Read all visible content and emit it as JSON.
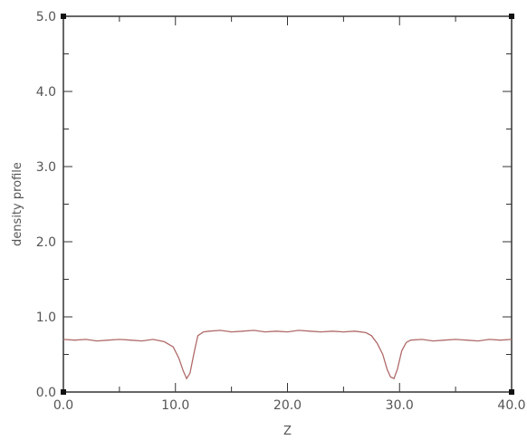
{
  "chart_data": {
    "type": "line",
    "title": "",
    "xlabel": "Z",
    "ylabel": "density profile",
    "xlim": [
      0,
      40
    ],
    "ylim": [
      0,
      5
    ],
    "x_ticks": [
      0,
      10,
      20,
      30,
      40
    ],
    "x_tick_labels": [
      "0.0",
      "10.0",
      "20.0",
      "30.0",
      "40.0"
    ],
    "y_ticks": [
      0,
      1,
      2,
      3,
      4,
      5
    ],
    "y_tick_labels": [
      "0.0",
      "1.0",
      "2.0",
      "3.0",
      "4.0",
      "5.0"
    ],
    "grid": false,
    "line_color": "#b06a6a",
    "series": [
      {
        "x": [
          0,
          1,
          2,
          3,
          4,
          5,
          6,
          7,
          8,
          9,
          9.8,
          10.3,
          10.7,
          11.0,
          11.3,
          11.7,
          12.0,
          12.5,
          13,
          14,
          15,
          16,
          17,
          18,
          19,
          20,
          21,
          22,
          23,
          24,
          25,
          26,
          27,
          27.5,
          28.0,
          28.5,
          28.9,
          29.2,
          29.5,
          29.8,
          30.2,
          30.6,
          31,
          32,
          33,
          34,
          35,
          36,
          37,
          38,
          39,
          40
        ],
        "y": [
          0.7,
          0.69,
          0.7,
          0.68,
          0.69,
          0.7,
          0.69,
          0.68,
          0.7,
          0.67,
          0.6,
          0.45,
          0.28,
          0.18,
          0.25,
          0.55,
          0.75,
          0.8,
          0.81,
          0.82,
          0.8,
          0.81,
          0.82,
          0.8,
          0.81,
          0.8,
          0.82,
          0.81,
          0.8,
          0.81,
          0.8,
          0.81,
          0.79,
          0.75,
          0.65,
          0.5,
          0.3,
          0.2,
          0.18,
          0.3,
          0.55,
          0.66,
          0.69,
          0.7,
          0.68,
          0.69,
          0.7,
          0.69,
          0.68,
          0.7,
          0.69,
          0.7
        ]
      }
    ]
  }
}
